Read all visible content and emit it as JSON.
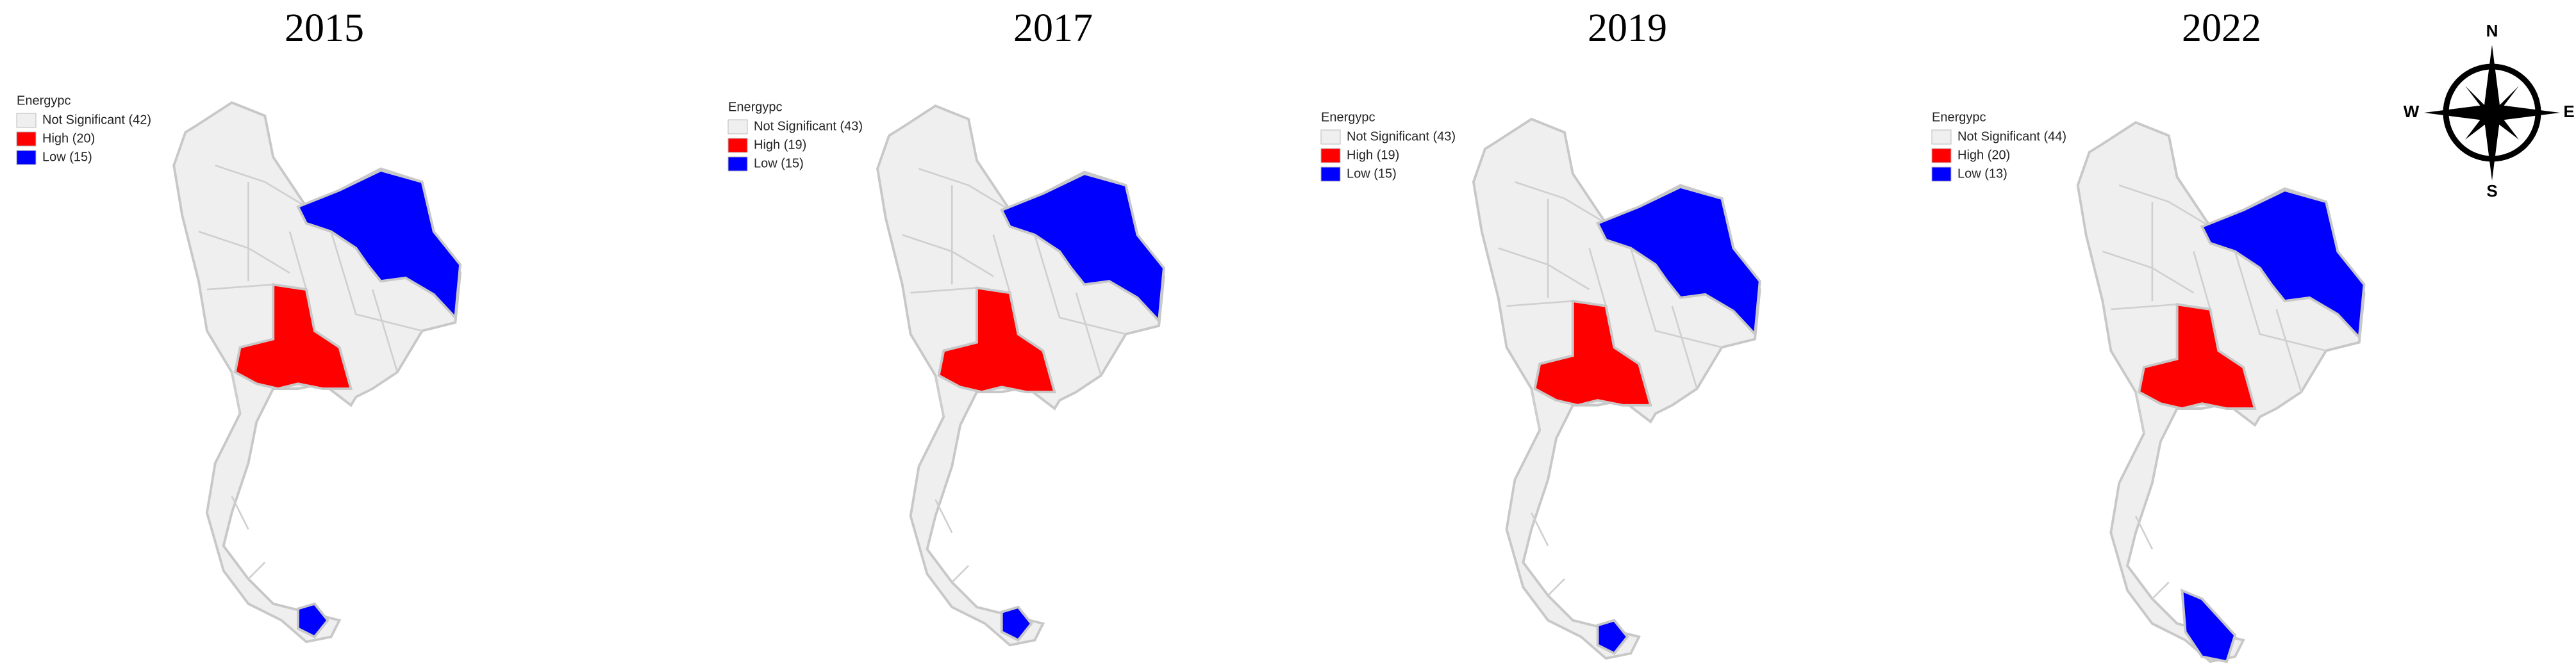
{
  "panels": [
    {
      "title": "2015",
      "legend": {
        "title": "Energypc",
        "items": [
          {
            "label": "Not Significant (42)",
            "color": "#efefef"
          },
          {
            "label": "High (20)",
            "color": "#ff0000"
          },
          {
            "label": "Low (15)",
            "color": "#0000ff"
          }
        ]
      }
    },
    {
      "title": "2017",
      "legend": {
        "title": "Energypc",
        "items": [
          {
            "label": "Not Significant (43)",
            "color": "#efefef"
          },
          {
            "label": "High (19)",
            "color": "#ff0000"
          },
          {
            "label": "Low (15)",
            "color": "#0000ff"
          }
        ]
      }
    },
    {
      "title": "2019",
      "legend": {
        "title": "Energypc",
        "items": [
          {
            "label": "Not Significant (43)",
            "color": "#efefef"
          },
          {
            "label": "High (19)",
            "color": "#ff0000"
          },
          {
            "label": "Low (15)",
            "color": "#0000ff"
          }
        ]
      }
    },
    {
      "title": "2022",
      "legend": {
        "title": "Energypc",
        "items": [
          {
            "label": "Not Significant (44)",
            "color": "#efefef"
          },
          {
            "label": "High (20)",
            "color": "#ff0000"
          },
          {
            "label": "Low (13)",
            "color": "#0000ff"
          }
        ]
      }
    }
  ],
  "compass": {
    "north": "N",
    "south": "S",
    "east": "E",
    "west": "W"
  }
}
